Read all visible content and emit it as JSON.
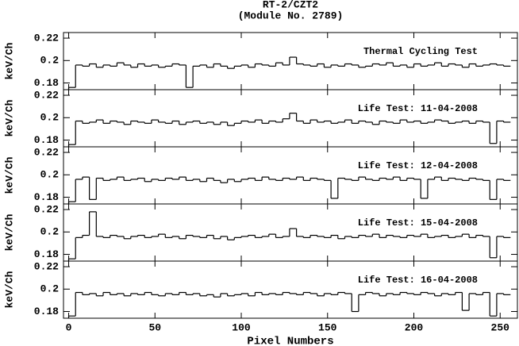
{
  "chart_data": [
    {
      "type": "line",
      "title": "RT-2/CZT2",
      "subtitle": "(Module No. 2789)",
      "annotation": "Thermal Cycling Test",
      "ylabel": "keV/Ch",
      "color": "#000000",
      "xlim": [
        -3,
        260
      ],
      "xticks": [
        0,
        50,
        100,
        150,
        200,
        250
      ],
      "ylim": [
        0.174,
        0.225
      ],
      "yticks": [
        0.22,
        0.2,
        0.18
      ],
      "x": [
        0,
        4,
        8,
        12,
        16,
        20,
        24,
        28,
        32,
        36,
        40,
        44,
        48,
        52,
        56,
        60,
        64,
        68,
        72,
        76,
        80,
        84,
        88,
        92,
        96,
        100,
        104,
        108,
        112,
        116,
        120,
        124,
        128,
        132,
        136,
        140,
        144,
        148,
        152,
        156,
        160,
        164,
        168,
        172,
        176,
        180,
        184,
        188,
        192,
        196,
        200,
        204,
        208,
        212,
        216,
        220,
        224,
        228,
        232,
        236,
        240,
        244,
        248,
        252
      ],
      "values": [
        0.176,
        0.196,
        0.195,
        0.197,
        0.194,
        0.196,
        0.195,
        0.198,
        0.196,
        0.194,
        0.197,
        0.195,
        0.196,
        0.194,
        0.195,
        0.197,
        0.196,
        0.176,
        0.195,
        0.196,
        0.194,
        0.197,
        0.195,
        0.193,
        0.195,
        0.196,
        0.194,
        0.197,
        0.196,
        0.195,
        0.198,
        0.196,
        0.203,
        0.197,
        0.196,
        0.195,
        0.197,
        0.194,
        0.196,
        0.195,
        0.197,
        0.196,
        0.194,
        0.195,
        0.197,
        0.196,
        0.198,
        0.195,
        0.196,
        0.194,
        0.197,
        0.195,
        0.196,
        0.198,
        0.195,
        0.197,
        0.196,
        0.194,
        0.197,
        0.195,
        0.196,
        0.197,
        0.196,
        0.195
      ]
    },
    {
      "type": "line",
      "annotation": "Life Test: 11-04-2008",
      "ylabel": "keV/Ch",
      "color": "#000000",
      "xlim": [
        -3,
        260
      ],
      "xticks": [
        0,
        50,
        100,
        150,
        200,
        250
      ],
      "ylim": [
        0.174,
        0.225
      ],
      "yticks": [
        0.22,
        0.2,
        0.18
      ],
      "x": [
        0,
        4,
        8,
        12,
        16,
        20,
        24,
        28,
        32,
        36,
        40,
        44,
        48,
        52,
        56,
        60,
        64,
        68,
        72,
        76,
        80,
        84,
        88,
        92,
        96,
        100,
        104,
        108,
        112,
        116,
        120,
        124,
        128,
        132,
        136,
        140,
        144,
        148,
        152,
        156,
        160,
        164,
        168,
        172,
        176,
        180,
        184,
        188,
        192,
        196,
        200,
        204,
        208,
        212,
        216,
        220,
        224,
        228,
        232,
        236,
        240,
        244,
        248,
        252
      ],
      "values": [
        0.176,
        0.197,
        0.195,
        0.196,
        0.198,
        0.195,
        0.197,
        0.196,
        0.194,
        0.197,
        0.196,
        0.195,
        0.198,
        0.196,
        0.195,
        0.197,
        0.194,
        0.196,
        0.197,
        0.195,
        0.196,
        0.194,
        0.196,
        0.193,
        0.195,
        0.197,
        0.196,
        0.198,
        0.195,
        0.197,
        0.196,
        0.199,
        0.204,
        0.197,
        0.195,
        0.198,
        0.196,
        0.197,
        0.195,
        0.196,
        0.198,
        0.195,
        0.197,
        0.196,
        0.194,
        0.197,
        0.196,
        0.195,
        0.198,
        0.196,
        0.197,
        0.195,
        0.196,
        0.198,
        0.197,
        0.195,
        0.196,
        0.197,
        0.195,
        0.197,
        0.196,
        0.177,
        0.197,
        0.196
      ]
    },
    {
      "type": "line",
      "annotation": "Life Test: 12-04-2008",
      "ylabel": "keV/Ch",
      "color": "#000000",
      "xlim": [
        -3,
        260
      ],
      "xticks": [
        0,
        50,
        100,
        150,
        200,
        250
      ],
      "ylim": [
        0.174,
        0.225
      ],
      "yticks": [
        0.22,
        0.2,
        0.18
      ],
      "x": [
        0,
        4,
        8,
        12,
        16,
        20,
        24,
        28,
        32,
        36,
        40,
        44,
        48,
        52,
        56,
        60,
        64,
        68,
        72,
        76,
        80,
        84,
        88,
        92,
        96,
        100,
        104,
        108,
        112,
        116,
        120,
        124,
        128,
        132,
        136,
        140,
        144,
        148,
        152,
        156,
        160,
        164,
        168,
        172,
        176,
        180,
        184,
        188,
        192,
        196,
        200,
        204,
        208,
        212,
        216,
        220,
        224,
        228,
        232,
        236,
        240,
        244,
        248,
        252
      ],
      "values": [
        0.176,
        0.196,
        0.198,
        0.178,
        0.197,
        0.195,
        0.196,
        0.198,
        0.195,
        0.196,
        0.197,
        0.194,
        0.196,
        0.195,
        0.197,
        0.196,
        0.198,
        0.195,
        0.196,
        0.194,
        0.197,
        0.195,
        0.193,
        0.196,
        0.194,
        0.196,
        0.197,
        0.195,
        0.198,
        0.196,
        0.195,
        0.197,
        0.196,
        0.198,
        0.195,
        0.197,
        0.196,
        0.195,
        0.179,
        0.197,
        0.196,
        0.195,
        0.198,
        0.196,
        0.195,
        0.197,
        0.196,
        0.198,
        0.195,
        0.197,
        0.196,
        0.179,
        0.196,
        0.198,
        0.195,
        0.197,
        0.196,
        0.195,
        0.197,
        0.196,
        0.195,
        0.178,
        0.196,
        0.195
      ]
    },
    {
      "type": "line",
      "annotation": "Life Test: 15-04-2008",
      "ylabel": "keV/Ch",
      "color": "#000000",
      "xlim": [
        -3,
        260
      ],
      "xticks": [
        0,
        50,
        100,
        150,
        200,
        250
      ],
      "ylim": [
        0.174,
        0.225
      ],
      "yticks": [
        0.22,
        0.2,
        0.18
      ],
      "x": [
        0,
        4,
        8,
        12,
        16,
        20,
        24,
        28,
        32,
        36,
        40,
        44,
        48,
        52,
        56,
        60,
        64,
        68,
        72,
        76,
        80,
        84,
        88,
        92,
        96,
        100,
        104,
        108,
        112,
        116,
        120,
        124,
        128,
        132,
        136,
        140,
        144,
        148,
        152,
        156,
        160,
        164,
        168,
        172,
        176,
        180,
        184,
        188,
        192,
        196,
        200,
        204,
        208,
        212,
        216,
        220,
        224,
        228,
        232,
        236,
        240,
        244,
        248,
        252
      ],
      "values": [
        0.176,
        0.195,
        0.197,
        0.218,
        0.196,
        0.195,
        0.197,
        0.196,
        0.194,
        0.196,
        0.197,
        0.195,
        0.196,
        0.198,
        0.195,
        0.196,
        0.194,
        0.197,
        0.196,
        0.195,
        0.197,
        0.194,
        0.196,
        0.193,
        0.195,
        0.196,
        0.197,
        0.195,
        0.196,
        0.198,
        0.195,
        0.196,
        0.203,
        0.196,
        0.195,
        0.197,
        0.196,
        0.195,
        0.197,
        0.194,
        0.196,
        0.195,
        0.197,
        0.196,
        0.198,
        0.195,
        0.197,
        0.196,
        0.195,
        0.197,
        0.196,
        0.198,
        0.195,
        0.196,
        0.197,
        0.195,
        0.196,
        0.198,
        0.195,
        0.197,
        0.196,
        0.177,
        0.196,
        0.195
      ]
    },
    {
      "type": "line",
      "annotation": "Life Test: 16-04-2008",
      "ylabel": "keV/Ch",
      "xlabel": "Pixel Numbers",
      "color": "#000000",
      "xlim": [
        -3,
        260
      ],
      "xticks": [
        0,
        50,
        100,
        150,
        200,
        250
      ],
      "ylim": [
        0.174,
        0.225
      ],
      "yticks": [
        0.22,
        0.2,
        0.18
      ],
      "x": [
        0,
        4,
        8,
        12,
        16,
        20,
        24,
        28,
        32,
        36,
        40,
        44,
        48,
        52,
        56,
        60,
        64,
        68,
        72,
        76,
        80,
        84,
        88,
        92,
        96,
        100,
        104,
        108,
        112,
        116,
        120,
        124,
        128,
        132,
        136,
        140,
        144,
        148,
        152,
        156,
        160,
        164,
        168,
        172,
        176,
        180,
        184,
        188,
        192,
        196,
        200,
        204,
        208,
        212,
        216,
        220,
        224,
        228,
        232,
        236,
        240,
        244,
        248,
        252
      ],
      "values": [
        0.176,
        0.197,
        0.195,
        0.196,
        0.194,
        0.197,
        0.195,
        0.196,
        0.194,
        0.196,
        0.195,
        0.197,
        0.195,
        0.194,
        0.196,
        0.195,
        0.197,
        0.195,
        0.196,
        0.194,
        0.195,
        0.193,
        0.196,
        0.194,
        0.195,
        0.196,
        0.194,
        0.197,
        0.195,
        0.196,
        0.195,
        0.197,
        0.196,
        0.195,
        0.197,
        0.196,
        0.194,
        0.196,
        0.195,
        0.197,
        0.196,
        0.18,
        0.195,
        0.197,
        0.196,
        0.194,
        0.196,
        0.195,
        0.197,
        0.196,
        0.195,
        0.197,
        0.196,
        0.194,
        0.196,
        0.195,
        0.197,
        0.181,
        0.196,
        0.195,
        0.197,
        0.176,
        0.196,
        0.195
      ]
    }
  ]
}
